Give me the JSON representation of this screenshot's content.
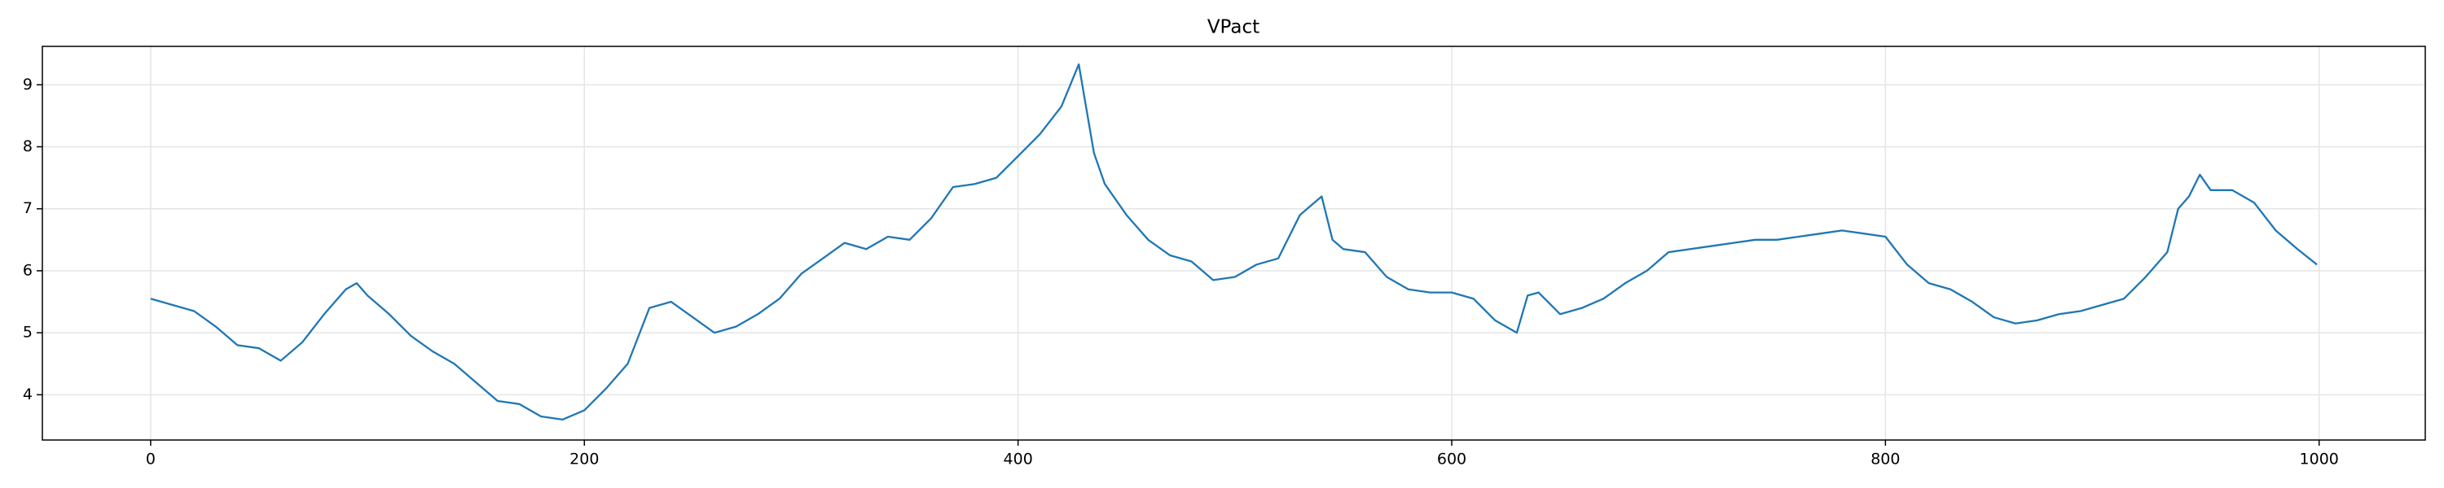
{
  "chart_data": {
    "type": "line",
    "title": "VPact",
    "x": [
      0,
      10,
      20,
      30,
      40,
      50,
      60,
      70,
      80,
      90,
      95,
      100,
      110,
      120,
      130,
      140,
      150,
      160,
      170,
      180,
      190,
      200,
      210,
      220,
      230,
      240,
      250,
      260,
      270,
      280,
      290,
      300,
      310,
      320,
      330,
      340,
      350,
      360,
      370,
      380,
      390,
      400,
      410,
      420,
      428,
      435,
      440,
      450,
      460,
      470,
      480,
      490,
      500,
      510,
      520,
      530,
      540,
      545,
      550,
      560,
      570,
      580,
      590,
      600,
      610,
      620,
      630,
      635,
      640,
      650,
      660,
      670,
      680,
      690,
      700,
      710,
      720,
      730,
      740,
      750,
      760,
      770,
      780,
      790,
      800,
      810,
      820,
      830,
      840,
      850,
      860,
      870,
      880,
      890,
      900,
      910,
      920,
      930,
      935,
      940,
      945,
      950,
      960,
      970,
      980,
      990,
      999
    ],
    "series": [
      {
        "name": "VPact",
        "color": "#1f77b4",
        "values": [
          5.55,
          5.45,
          5.35,
          5.1,
          4.8,
          4.75,
          4.55,
          4.85,
          5.3,
          5.7,
          5.8,
          5.6,
          5.3,
          4.95,
          4.7,
          4.5,
          4.2,
          3.9,
          3.85,
          3.65,
          3.6,
          3.75,
          4.1,
          4.5,
          5.4,
          5.5,
          5.25,
          5.0,
          5.1,
          5.3,
          5.55,
          5.95,
          6.2,
          6.45,
          6.35,
          6.55,
          6.5,
          6.85,
          7.35,
          7.4,
          7.5,
          7.85,
          8.2,
          8.65,
          9.33,
          7.9,
          7.4,
          6.9,
          6.5,
          6.25,
          6.15,
          5.85,
          5.9,
          6.1,
          6.2,
          6.9,
          7.2,
          6.5,
          6.35,
          6.3,
          5.9,
          5.7,
          5.65,
          5.65,
          5.55,
          5.2,
          5.0,
          5.6,
          5.65,
          5.3,
          5.4,
          5.55,
          5.8,
          6.0,
          6.3,
          6.35,
          6.4,
          6.45,
          6.5,
          6.5,
          6.55,
          6.6,
          6.65,
          6.6,
          6.55,
          6.1,
          5.8,
          5.7,
          5.5,
          5.25,
          5.15,
          5.2,
          5.3,
          5.35,
          5.45,
          5.55,
          5.9,
          6.3,
          7.0,
          7.2,
          7.55,
          7.3,
          7.3,
          7.1,
          6.65,
          6.35,
          6.1
        ]
      }
    ],
    "xlim": [
      -49.95,
      1048.95
    ],
    "ylim": [
      3.27,
      9.62
    ],
    "xticks": [
      0,
      200,
      400,
      600,
      800,
      1000
    ],
    "yticks": [
      4,
      5,
      6,
      7,
      8,
      9
    ],
    "grid": true
  }
}
